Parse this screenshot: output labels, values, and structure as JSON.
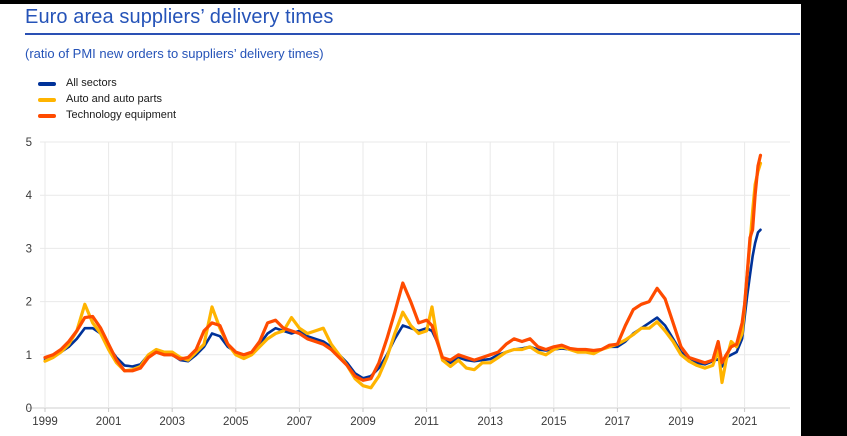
{
  "header": {
    "title": "Euro area suppliers’ delivery times",
    "subtitle": "(ratio of PMI new orders to suppliers’ delivery times)",
    "title_color": "#2553b8",
    "rule_color": "#2a50b4"
  },
  "legend": [
    {
      "label": "All sectors",
      "color": "#003299"
    },
    {
      "label": "Auto and auto parts",
      "color": "#FFB400"
    },
    {
      "label": "Technology equipment",
      "color": "#FF4B00"
    }
  ],
  "chart_data": {
    "type": "line",
    "title": "Euro area suppliers’ delivery times",
    "subtitle": "(ratio of PMI new orders to suppliers’ delivery times)",
    "xlabel": "",
    "ylabel": "",
    "x_ticks": [
      1999,
      2001,
      2003,
      2005,
      2007,
      2009,
      2011,
      2013,
      2015,
      2017,
      2019,
      2021
    ],
    "y_ticks": [
      0,
      1,
      2,
      3,
      4,
      5
    ],
    "ylim": [
      0,
      5
    ],
    "xlim": [
      1998.85,
      2022.4
    ],
    "grid": true,
    "legend_position": "top-left",
    "x_unit": "year (monthly data, Jan 1999 – Jun 2021)",
    "x": [
      1999.0,
      1999.25,
      1999.5,
      1999.75,
      2000.0,
      2000.25,
      2000.5,
      2000.75,
      2001.0,
      2001.25,
      2001.5,
      2001.75,
      2002.0,
      2002.25,
      2002.5,
      2002.75,
      2003.0,
      2003.25,
      2003.5,
      2003.75,
      2004.0,
      2004.25,
      2004.5,
      2004.75,
      2005.0,
      2005.25,
      2005.5,
      2005.75,
      2006.0,
      2006.25,
      2006.5,
      2006.75,
      2007.0,
      2007.25,
      2007.5,
      2007.75,
      2008.0,
      2008.25,
      2008.5,
      2008.75,
      2009.0,
      2009.25,
      2009.5,
      2009.75,
      2010.0,
      2010.25,
      2010.5,
      2010.75,
      2011.0,
      2011.17,
      2011.33,
      2011.5,
      2011.75,
      2012.0,
      2012.25,
      2012.5,
      2012.75,
      2013.0,
      2013.25,
      2013.5,
      2013.75,
      2014.0,
      2014.25,
      2014.5,
      2014.75,
      2015.0,
      2015.25,
      2015.5,
      2015.75,
      2016.0,
      2016.25,
      2016.5,
      2016.75,
      2017.0,
      2017.25,
      2017.5,
      2017.75,
      2018.0,
      2018.25,
      2018.5,
      2018.75,
      2019.0,
      2019.25,
      2019.5,
      2019.75,
      2020.0,
      2020.17,
      2020.29,
      2020.42,
      2020.58,
      2020.75,
      2020.92,
      2021.0,
      2021.08,
      2021.17,
      2021.25,
      2021.33,
      2021.42,
      2021.5
    ],
    "series": [
      {
        "name": "All sectors",
        "color": "#003299",
        "values": [
          0.92,
          0.98,
          1.05,
          1.15,
          1.3,
          1.5,
          1.5,
          1.4,
          1.15,
          0.95,
          0.8,
          0.78,
          0.82,
          1.0,
          1.05,
          1.0,
          1.0,
          0.9,
          0.88,
          1.0,
          1.15,
          1.4,
          1.35,
          1.15,
          1.05,
          1.0,
          1.05,
          1.2,
          1.4,
          1.5,
          1.45,
          1.4,
          1.45,
          1.35,
          1.3,
          1.25,
          1.15,
          1.0,
          0.85,
          0.65,
          0.56,
          0.6,
          0.75,
          1.0,
          1.3,
          1.55,
          1.5,
          1.45,
          1.5,
          1.45,
          1.25,
          0.95,
          0.85,
          0.95,
          0.9,
          0.88,
          0.9,
          0.92,
          1.0,
          1.05,
          1.1,
          1.12,
          1.15,
          1.1,
          1.08,
          1.1,
          1.12,
          1.1,
          1.08,
          1.08,
          1.05,
          1.1,
          1.15,
          1.15,
          1.25,
          1.4,
          1.5,
          1.6,
          1.7,
          1.55,
          1.3,
          1.05,
          0.95,
          0.85,
          0.82,
          0.88,
          0.92,
          0.78,
          0.95,
          1.0,
          1.05,
          1.3,
          1.7,
          2.1,
          2.5,
          2.85,
          3.1,
          3.3,
          3.35
        ]
      },
      {
        "name": "Auto and auto parts",
        "color": "#FFB400",
        "values": [
          0.88,
          0.95,
          1.05,
          1.2,
          1.45,
          1.95,
          1.6,
          1.4,
          1.1,
          0.85,
          0.7,
          0.72,
          0.78,
          1.0,
          1.1,
          1.05,
          1.05,
          0.95,
          0.9,
          1.05,
          1.2,
          1.9,
          1.5,
          1.2,
          1.0,
          0.93,
          1.0,
          1.15,
          1.3,
          1.4,
          1.45,
          1.7,
          1.5,
          1.4,
          1.45,
          1.5,
          1.2,
          1.0,
          0.8,
          0.55,
          0.42,
          0.38,
          0.6,
          0.95,
          1.4,
          1.8,
          1.55,
          1.4,
          1.45,
          1.9,
          1.3,
          0.9,
          0.78,
          0.9,
          0.75,
          0.72,
          0.85,
          0.85,
          0.95,
          1.05,
          1.1,
          1.1,
          1.15,
          1.05,
          1.0,
          1.1,
          1.15,
          1.1,
          1.05,
          1.05,
          1.02,
          1.1,
          1.15,
          1.2,
          1.28,
          1.38,
          1.5,
          1.5,
          1.62,
          1.45,
          1.25,
          1.0,
          0.88,
          0.8,
          0.75,
          0.8,
          1.1,
          0.48,
          0.9,
          1.25,
          1.15,
          1.4,
          1.9,
          2.5,
          3.1,
          3.7,
          4.2,
          4.45,
          4.6
        ]
      },
      {
        "name": "Technology equipment",
        "color": "#FF4B00",
        "values": [
          0.95,
          1.0,
          1.1,
          1.25,
          1.45,
          1.7,
          1.72,
          1.5,
          1.2,
          0.9,
          0.7,
          0.7,
          0.75,
          0.95,
          1.05,
          1.0,
          1.0,
          0.92,
          0.95,
          1.1,
          1.45,
          1.6,
          1.55,
          1.2,
          1.05,
          1.0,
          1.05,
          1.25,
          1.6,
          1.65,
          1.5,
          1.45,
          1.4,
          1.3,
          1.25,
          1.2,
          1.1,
          0.95,
          0.8,
          0.6,
          0.52,
          0.55,
          0.85,
          1.3,
          1.8,
          2.35,
          2.0,
          1.6,
          1.65,
          1.55,
          1.25,
          0.95,
          0.9,
          1.0,
          0.95,
          0.9,
          0.95,
          1.0,
          1.05,
          1.2,
          1.3,
          1.25,
          1.3,
          1.15,
          1.1,
          1.15,
          1.18,
          1.12,
          1.1,
          1.1,
          1.08,
          1.1,
          1.18,
          1.2,
          1.55,
          1.85,
          1.95,
          2.0,
          2.25,
          2.05,
          1.6,
          1.15,
          0.95,
          0.9,
          0.85,
          0.9,
          1.25,
          0.85,
          1.0,
          1.15,
          1.2,
          1.6,
          1.95,
          2.5,
          3.2,
          3.35,
          4.0,
          4.55,
          4.75
        ]
      }
    ]
  }
}
